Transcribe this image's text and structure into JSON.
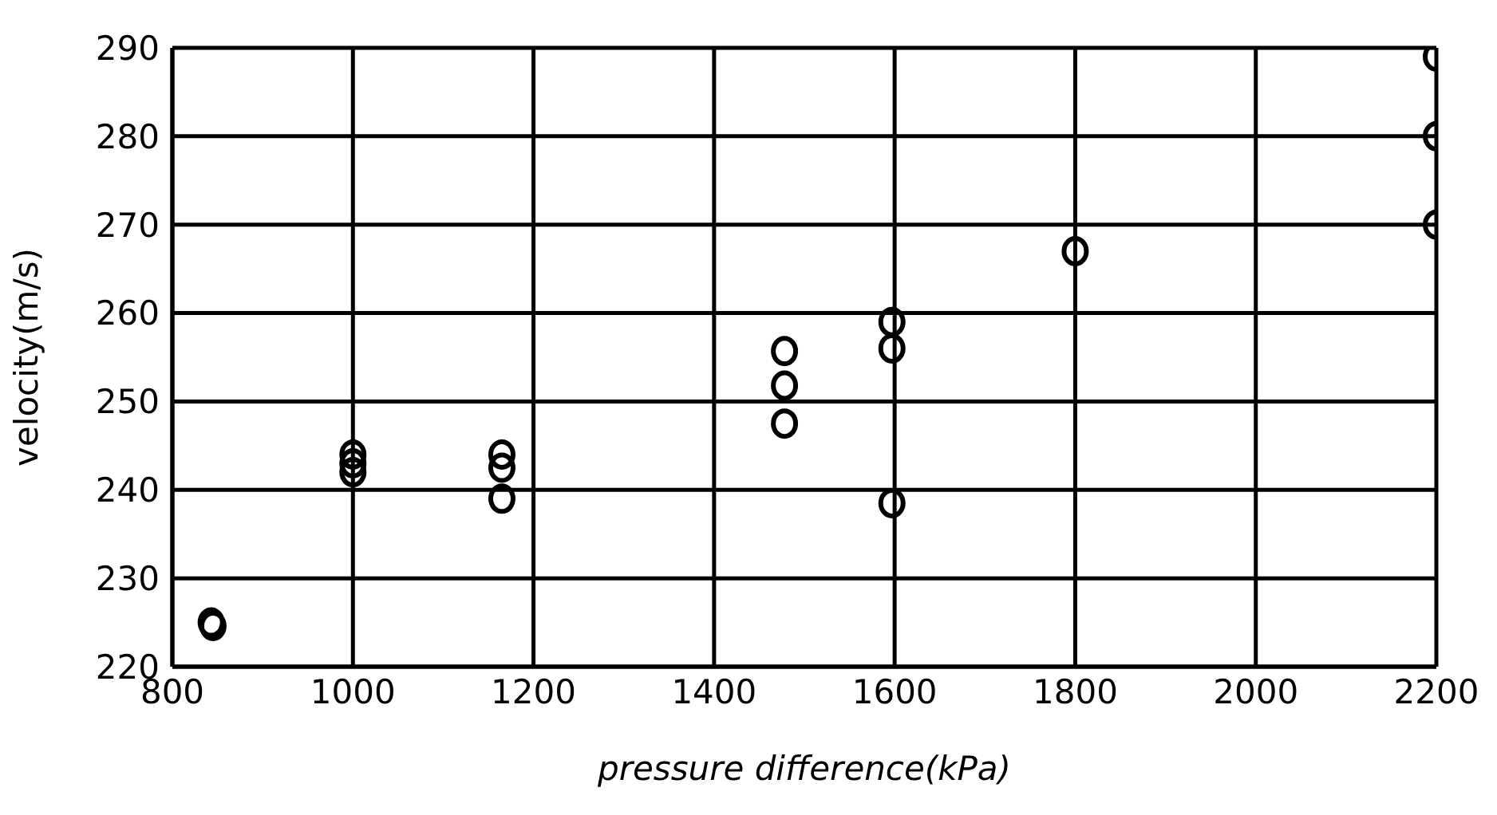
{
  "chart_data": {
    "type": "scatter",
    "xlabel": "pressure difference(kPa)",
    "ylabel": "velocity(m/s)",
    "x": [
      843,
      845,
      1000,
      1000,
      1000,
      1165,
      1165,
      1165,
      1478,
      1478,
      1478,
      1597,
      1597,
      1597,
      1800,
      2200,
      2200,
      2200
    ],
    "values": [
      225,
      224.6,
      244,
      243,
      242,
      244,
      242.5,
      239,
      255.7,
      251.8,
      247.5,
      259,
      256,
      238.5,
      267,
      289,
      280,
      270
    ],
    "color": "#000000",
    "marker": "circle",
    "xlim": [
      800,
      2200
    ],
    "xticks": [
      800,
      1000,
      1200,
      1400,
      1600,
      1800,
      2000,
      2200
    ],
    "ylim": [
      220,
      290
    ],
    "yticks": [
      220,
      230,
      240,
      250,
      260,
      270,
      280,
      290
    ],
    "grid": true
  }
}
